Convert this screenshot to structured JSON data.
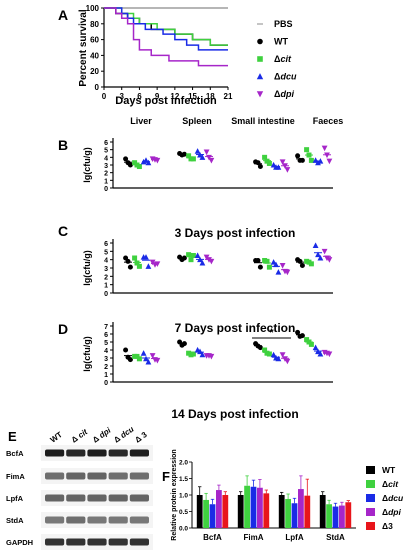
{
  "panel_letters": {
    "A": "A",
    "B": "B",
    "C": "C",
    "D": "D",
    "E": "E",
    "F": "F"
  },
  "colors": {
    "PBS": "#9e9e9e",
    "WT": "#000000",
    "cit": "#3fd13f",
    "dcu": "#1a2be6",
    "dpi": "#a626c9",
    "d3": "#e8151b"
  },
  "chart_data": [
    {
      "id": "survival",
      "type": "line",
      "xlabel": "Days post infection",
      "ylabel": "Percent survival",
      "xlim": [
        0,
        21
      ],
      "ylim": [
        0,
        100
      ],
      "xticks": [
        "0",
        "3",
        "6",
        "9",
        "12",
        "15",
        "18",
        "21"
      ],
      "yticks": [
        "0",
        "20",
        "40",
        "60",
        "80",
        "100"
      ],
      "legend": {
        "position": "right",
        "entries": [
          {
            "marker": "–",
            "prefix": "",
            "text": "PBS",
            "italic": false,
            "key": "PBS"
          },
          {
            "marker": "●",
            "prefix": "",
            "text": "WT",
            "italic": false,
            "key": "WT"
          },
          {
            "marker": "■",
            "prefix": "Δ",
            "text": "cit",
            "italic": true,
            "key": "cit"
          },
          {
            "marker": "▲",
            "prefix": "Δ",
            "text": "dcu",
            "italic": true,
            "key": "dcu"
          },
          {
            "marker": "▼",
            "prefix": "Δ",
            "text": "dpi",
            "italic": true,
            "key": "dpi"
          }
        ]
      },
      "series": [
        {
          "key": "PBS",
          "steps": [
            [
              0,
              100
            ],
            [
              21,
              100
            ]
          ]
        },
        {
          "key": "WT",
          "steps": [
            [
              0,
              100
            ],
            [
              2,
              93
            ],
            [
              4,
              87
            ],
            [
              6,
              80
            ],
            [
              8,
              73
            ],
            [
              12,
              67
            ],
            [
              15,
              60
            ],
            [
              18,
              53
            ],
            [
              21,
              53
            ]
          ]
        },
        {
          "key": "cit",
          "steps": [
            [
              0,
              100
            ],
            [
              3,
              93
            ],
            [
              5,
              87
            ],
            [
              6,
              80
            ],
            [
              9,
              73
            ],
            [
              12,
              67
            ],
            [
              15,
              60
            ],
            [
              18,
              53
            ],
            [
              21,
              53
            ]
          ]
        },
        {
          "key": "dcu",
          "steps": [
            [
              0,
              100
            ],
            [
              3,
              93
            ],
            [
              4,
              87
            ],
            [
              5,
              80
            ],
            [
              7,
              73
            ],
            [
              10,
              67
            ],
            [
              12,
              60
            ],
            [
              14,
              53
            ],
            [
              16,
              47
            ],
            [
              21,
              47
            ]
          ]
        },
        {
          "key": "dpi",
          "steps": [
            [
              0,
              100
            ],
            [
              2,
              93
            ],
            [
              3,
              87
            ],
            [
              4,
              80
            ],
            [
              5,
              60
            ],
            [
              6,
              47
            ],
            [
              8,
              40
            ],
            [
              11,
              33
            ],
            [
              16,
              27
            ],
            [
              21,
              27
            ]
          ]
        }
      ]
    },
    {
      "id": "cfu",
      "type": "scatter",
      "ylabel": "lg(cfu/g)",
      "groups": [
        "Liver",
        "Spleen",
        "Small intestine",
        "Faeces"
      ],
      "strains": [
        "WT",
        "cit",
        "dcu",
        "dpi"
      ],
      "rows": [
        {
          "letter": "B",
          "caption": "3 Days post infection",
          "ylim": [
            0,
            6
          ],
          "yticks": [
            "0",
            "1",
            "2",
            "3",
            "4",
            "5",
            "6"
          ],
          "data": {
            "Liver": {
              "WT": [
                3.8,
                3.3,
                3.0
              ],
              "cit": [
                3.3,
                3.0,
                2.8
              ],
              "dcu": [
                3.4,
                3.6,
                3.3
              ],
              "dpi": [
                3.8,
                3.7,
                3.6
              ]
            },
            "Spleen": {
              "WT": [
                4.5,
                4.3,
                4.4
              ],
              "cit": [
                4.2,
                3.8,
                3.8
              ],
              "dcu": [
                4.8,
                4.3,
                4.0
              ],
              "dpi": [
                4.7,
                4.0,
                3.6
              ]
            },
            "Small intestine": {
              "WT": [
                3.4,
                3.3,
                2.8
              ],
              "cit": [
                4.0,
                3.5,
                3.2
              ],
              "dcu": [
                3.0,
                2.7,
                2.7
              ],
              "dpi": [
                3.4,
                2.9,
                2.4
              ]
            },
            "Faeces": {
              "WT": [
                4.2,
                3.6,
                3.6
              ],
              "cit": [
                5.0,
                4.3,
                3.6
              ],
              "dcu": [
                3.6,
                3.3,
                3.5
              ],
              "dpi": [
                5.2,
                4.3,
                3.5
              ]
            }
          }
        },
        {
          "letter": "C",
          "caption": "7 Days post infection",
          "ylim": [
            0,
            6
          ],
          "yticks": [
            "0",
            "1",
            "2",
            "3",
            "4",
            "5",
            "6"
          ],
          "data": {
            "Liver": {
              "WT": [
                4.2,
                3.8,
                3.1
              ],
              "cit": [
                4.2,
                3.6,
                3.2
              ],
              "dcu": [
                4.3,
                4.3,
                3.2
              ],
              "dpi": [
                3.7,
                3.4,
                3.5
              ]
            },
            "Spleen": {
              "WT": [
                4.3,
                4.0,
                4.2
              ],
              "cit": [
                4.6,
                4.0,
                4.5
              ],
              "dcu": [
                4.5,
                4.0,
                3.6
              ],
              "dpi": [
                4.3,
                4.0,
                3.8
              ]
            },
            "Small intestine": {
              "WT": [
                3.9,
                3.9,
                3.1
              ],
              "cit": [
                3.9,
                3.8,
                3.1
              ],
              "dcu": [
                3.7,
                3.4,
                2.5
              ],
              "dpi": [
                3.3,
                2.6,
                2.5
              ]
            },
            "Faeces": {
              "WT": [
                4.0,
                3.8,
                3.3
              ],
              "cit": [
                3.8,
                3.7,
                3.5
              ],
              "dcu": [
                5.7,
                4.6,
                4.2
              ],
              "dpi": [
                5.0,
                4.2,
                4.0
              ]
            }
          }
        },
        {
          "letter": "D",
          "caption": "14 Days post infection",
          "ylim": [
            0,
            7
          ],
          "yticks": [
            "0",
            "1",
            "2",
            "3",
            "4",
            "5",
            "6",
            "7"
          ],
          "annotation": {
            "text": "*",
            "from": "WT",
            "to": "dpi",
            "group": "Small intestine"
          },
          "data": {
            "Liver": {
              "WT": [
                4.0,
                3.1,
                2.8
              ],
              "cit": [
                3.2,
                3.2,
                2.9
              ],
              "dcu": [
                3.6,
                2.9,
                2.5
              ],
              "dpi": [
                3.3,
                2.8,
                2.7
              ]
            },
            "Spleen": {
              "WT": [
                5.0,
                4.6,
                4.8
              ],
              "cit": [
                3.6,
                3.4,
                3.5
              ],
              "dcu": [
                4.0,
                3.8,
                3.4
              ],
              "dpi": [
                3.3,
                3.3,
                3.2
              ]
            },
            "Small intestine": {
              "WT": [
                4.8,
                4.5,
                4.3
              ],
              "cit": [
                4.0,
                3.6,
                3.5
              ],
              "dcu": [
                3.4,
                3.0,
                2.9
              ],
              "dpi": [
                3.4,
                2.9,
                2.6
              ]
            },
            "Faeces": {
              "WT": [
                6.2,
                5.7,
                5.8
              ],
              "cit": [
                5.3,
                5.0,
                4.7
              ],
              "dcu": [
                4.3,
                3.8,
                3.5
              ],
              "dpi": [
                3.7,
                3.6,
                3.5
              ]
            }
          }
        }
      ]
    },
    {
      "id": "protein",
      "type": "bar",
      "ylabel": "Relative protein expression",
      "ylim": [
        0,
        2.0
      ],
      "yticks": [
        "0.0",
        "0.5",
        "1.0",
        "1.5",
        "2.0"
      ],
      "categories": [
        "BcfA",
        "FimA",
        "LpfA",
        "StdA"
      ],
      "legend": {
        "position": "right",
        "entries": [
          {
            "prefix": "",
            "text": "WT",
            "key": "WT"
          },
          {
            "prefix": "Δ",
            "text": "cit",
            "key": "cit"
          },
          {
            "prefix": "Δ",
            "text": "dcu",
            "key": "dcu"
          },
          {
            "prefix": "Δ",
            "text": "dpi",
            "key": "dpi"
          },
          {
            "prefix": "Δ",
            "text": "3",
            "key": "d3"
          }
        ]
      },
      "series": [
        {
          "key": "WT",
          "values": [
            1.0,
            1.0,
            1.0,
            1.0
          ],
          "errors": [
            0.25,
            0.1,
            0.08,
            0.1
          ]
        },
        {
          "key": "cit",
          "values": [
            0.85,
            1.28,
            0.88,
            0.72
          ],
          "errors": [
            0.2,
            0.3,
            0.15,
            0.12
          ]
        },
        {
          "key": "dcu",
          "values": [
            0.72,
            1.25,
            0.75,
            0.65
          ],
          "errors": [
            0.15,
            0.2,
            0.15,
            0.1
          ]
        },
        {
          "key": "dpi",
          "values": [
            1.15,
            1.22,
            1.18,
            0.68
          ],
          "errors": [
            0.15,
            0.25,
            0.4,
            0.1
          ]
        },
        {
          "key": "d3",
          "values": [
            1.0,
            1.05,
            0.98,
            0.78
          ],
          "errors": [
            0.1,
            0.1,
            0.5,
            0.05
          ]
        }
      ]
    }
  ],
  "blot": {
    "lanes": [
      {
        "prefix": "",
        "text": "WT",
        "italic": false
      },
      {
        "prefix": "Δ ",
        "text": "cit",
        "italic": true
      },
      {
        "prefix": "Δ ",
        "text": "dpi",
        "italic": true
      },
      {
        "prefix": "Δ ",
        "text": "dcu",
        "italic": true
      },
      {
        "prefix": "Δ ",
        "text": "3",
        "italic": false
      }
    ],
    "rows": [
      {
        "label": "BcfA",
        "intensity": [
          0.95,
          0.9,
          0.95,
          0.9,
          0.95
        ]
      },
      {
        "label": "FimA",
        "intensity": [
          0.55,
          0.6,
          0.6,
          0.55,
          0.55
        ]
      },
      {
        "label": "LpfA",
        "intensity": [
          0.6,
          0.6,
          0.6,
          0.6,
          0.6
        ]
      },
      {
        "label": "StdA",
        "intensity": [
          0.5,
          0.55,
          0.5,
          0.5,
          0.5
        ]
      },
      {
        "label": "GAPDH",
        "intensity": [
          0.85,
          0.85,
          0.85,
          0.85,
          0.85
        ]
      }
    ]
  }
}
